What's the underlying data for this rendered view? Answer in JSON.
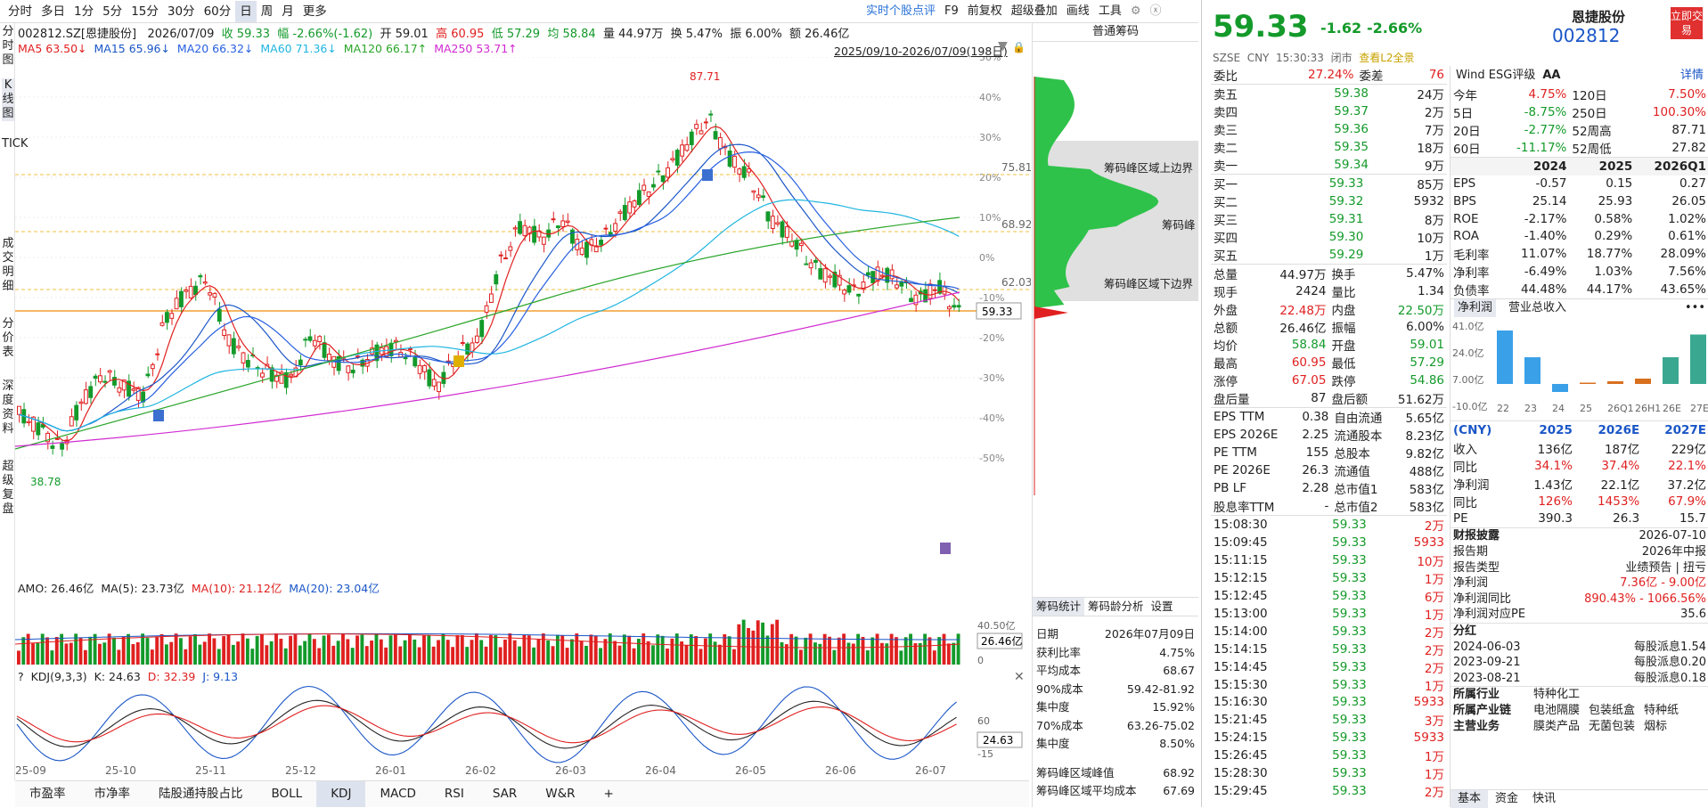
{
  "toolbar": {
    "periods": [
      "分时",
      "多日",
      "1分",
      "5分",
      "15分",
      "30分",
      "60分",
      "日",
      "周",
      "月",
      "更多"
    ],
    "active_period": "日",
    "tools": [
      "实时个股点评",
      "F9",
      "前复权",
      "超级叠加",
      "画线",
      "工具"
    ]
  },
  "info": {
    "code": "002812.SZ[恩捷股份]",
    "date": "2026/07/09",
    "close": "收 59.33",
    "change": "幅 -2.66%(-1.62)",
    "open": "开 59.01",
    "high": "高 60.95",
    "low": "低 57.29",
    "avg": "均 58.84",
    "vol": "量 44.97万",
    "turnover": "换 5.47%",
    "amp": "振 6.00%",
    "amt": "额 26.46亿"
  },
  "ma": {
    "ma5": "MA5 63.50↓",
    "ma15": "MA15 65.96↓",
    "ma20": "MA20 66.32↓",
    "ma60": "MA60 71.36↓",
    "ma120": "MA120 66.17↑",
    "ma250": "MA250 53.71↑",
    "range": "2025/09/10-2026/07/09(198日)"
  },
  "ma_colors": {
    "ma5": "#e02020",
    "ma15": "#1a56c7",
    "ma20": "#2860e0",
    "ma60": "#1fb5e0",
    "ma120": "#2aa52a",
    "ma250": "#d02ad0"
  },
  "sidebar": [
    "分时图",
    "K线图",
    "TICK",
    "成交明细",
    "分价表",
    "深度资料",
    "超级复盘"
  ],
  "price_chart": {
    "pct_ticks": [
      "50%",
      "40%",
      "30%",
      "20%",
      "10%",
      "0%",
      "-10%",
      "-20%",
      "-30%",
      "-40%",
      "-50%"
    ],
    "max_label": "87.71",
    "min_label": "38.78",
    "last_label": "59.33",
    "band_labels": [
      "75.81",
      "68.92",
      "62.03"
    ],
    "x_labels": [
      "25-09",
      "25-10",
      "25-11",
      "25-12",
      "26-01",
      "26-02",
      "26-03",
      "26-04",
      "26-05",
      "26-06",
      "26-07"
    ]
  },
  "chip": {
    "title": "普通筹码",
    "upper": "筹码峰区域上边界",
    "peak": "筹码峰",
    "lower": "筹码峰区域下边界"
  },
  "amo": {
    "label": "AMO: 26.46亿",
    "ma5": "MA(5): 23.73亿",
    "ma10": "MA(10): 21.12亿",
    "ma20": "MA(20): 23.04亿",
    "tick_top": "40.50亿",
    "tick_zero": "0",
    "value_box": "26.46亿"
  },
  "kdj": {
    "label": "KDJ(9,3,3)",
    "k": "K: 24.63",
    "d": "D: 32.39",
    "j": "J: 9.13",
    "tick_hi": "60",
    "tick_lo": "-15",
    "value_box": "24.63"
  },
  "chipstats": {
    "tabs": [
      "筹码统计",
      "筹码龄分析",
      "设置"
    ],
    "rows": [
      [
        "日期",
        "2026年07月09日"
      ],
      [
        "获利比率",
        "4.75%"
      ],
      [
        "平均成本",
        "68.67"
      ],
      [
        "90%成本",
        "59.42-81.92"
      ],
      [
        "集中度",
        "15.92%"
      ],
      [
        "70%成本",
        "63.26-75.02"
      ],
      [
        "集中度",
        "8.50%"
      ]
    ],
    "extra": [
      [
        "筹码峰区域峰值",
        "68.92"
      ],
      [
        "筹码峰区域平均成本",
        "67.69"
      ]
    ]
  },
  "bottom_tabs": [
    "市盈率",
    "市净率",
    "陆股通持股占比",
    "BOLL",
    "KDJ",
    "MACD",
    "RSI",
    "SAR",
    "W&R",
    "+"
  ],
  "bottom_active": "KDJ",
  "quote": {
    "price": "59.33",
    "change": "-1.62",
    "pct": "-2.66%",
    "name": "恩捷股份",
    "code": "002812",
    "trade_btn": "立即交易",
    "sub": [
      "SZSE",
      "CNY",
      "15:30:33",
      "闭市",
      "查看L2全景"
    ],
    "weibi": [
      "委比",
      "27.24%",
      "委差",
      "76"
    ],
    "sells": [
      [
        "卖五",
        "59.38",
        "24万"
      ],
      [
        "卖四",
        "59.37",
        "2万"
      ],
      [
        "卖三",
        "59.36",
        "7万"
      ],
      [
        "卖二",
        "59.35",
        "18万"
      ],
      [
        "卖一",
        "59.34",
        "9万"
      ]
    ],
    "buys": [
      [
        "买一",
        "59.33",
        "85万"
      ],
      [
        "买二",
        "59.32",
        "5932"
      ],
      [
        "买三",
        "59.31",
        "8万"
      ],
      [
        "买四",
        "59.30",
        "10万"
      ],
      [
        "买五",
        "59.29",
        "1万"
      ]
    ],
    "stats": [
      [
        "总量",
        "44.97万",
        "换手",
        "5.47%"
      ],
      [
        "现手",
        "2424",
        "量比",
        "1.34"
      ],
      [
        "外盘",
        "22.48万",
        "内盘",
        "22.50万"
      ],
      [
        "总额",
        "26.46亿",
        "振幅",
        "6.00%"
      ],
      [
        "均价",
        "58.84",
        "开盘",
        "59.01"
      ],
      [
        "最高",
        "60.95",
        "最低",
        "57.29"
      ],
      [
        "涨停",
        "67.05",
        "跌停",
        "54.86"
      ],
      [
        "盘后量",
        "87",
        "盘后额",
        "51.62万"
      ]
    ],
    "fin": [
      [
        "EPS TTM",
        "0.38",
        "自由流通",
        "5.65亿"
      ],
      [
        "EPS 2026E",
        "2.25",
        "流通股本",
        "8.23亿"
      ],
      [
        "PE TTM",
        "155",
        "总股本",
        "9.82亿"
      ],
      [
        "PE 2026E",
        "26.3",
        "流通值",
        "488亿"
      ],
      [
        "PB LF",
        "2.28",
        "总市值1",
        "583亿"
      ],
      [
        "股息率TTM",
        "-",
        "总市值2",
        "583亿"
      ]
    ],
    "ticks": [
      [
        "15:08:30",
        "59.33",
        "2万"
      ],
      [
        "15:09:45",
        "59.33",
        "5933"
      ],
      [
        "15:11:15",
        "59.33",
        "10万"
      ],
      [
        "15:12:15",
        "59.33",
        "1万"
      ],
      [
        "15:12:45",
        "59.33",
        "6万"
      ],
      [
        "15:13:00",
        "59.33",
        "1万"
      ],
      [
        "15:14:00",
        "59.33",
        "2万"
      ],
      [
        "15:14:15",
        "59.33",
        "2万"
      ],
      [
        "15:14:45",
        "59.33",
        "2万"
      ],
      [
        "15:15:30",
        "59.33",
        "1万"
      ],
      [
        "15:16:30",
        "59.33",
        "5933"
      ],
      [
        "15:21:45",
        "59.33",
        "3万"
      ],
      [
        "15:24:15",
        "59.33",
        "5933"
      ],
      [
        "15:26:45",
        "59.33",
        "1万"
      ],
      [
        "15:28:30",
        "59.33",
        "1万"
      ],
      [
        "15:29:45",
        "59.33",
        "2万"
      ]
    ]
  },
  "esg": {
    "label": "Wind ESG评级",
    "grade": "AA",
    "detail": "详情"
  },
  "perf": [
    [
      "今年",
      "4.75%",
      "120日",
      "7.50%"
    ],
    [
      "5日",
      "-8.75%",
      "250日",
      "100.30%"
    ],
    [
      "20日",
      "-2.77%",
      "52周高",
      "87.71"
    ],
    [
      "60日",
      "-11.17%",
      "52周低",
      "27.82"
    ]
  ],
  "fin_table": {
    "header": [
      "",
      "2024",
      "2025",
      "2026Q1"
    ],
    "rows": [
      [
        "EPS",
        "-0.57",
        "0.15",
        "0.27"
      ],
      [
        "BPS",
        "25.14",
        "25.93",
        "26.05"
      ],
      [
        "ROE",
        "-2.17%",
        "0.58%",
        "1.02%"
      ],
      [
        "ROA",
        "-1.40%",
        "0.29%",
        "0.61%"
      ],
      [
        "毛利率",
        "11.07%",
        "18.77%",
        "28.09%"
      ],
      [
        "净利率",
        "-6.49%",
        "1.03%",
        "7.56%"
      ],
      [
        "负债率",
        "44.48%",
        "44.17%",
        "43.65%"
      ]
    ]
  },
  "profit_tabs": [
    "净利润",
    "营业总收入"
  ],
  "profit_chart": {
    "yticks": [
      "41.0亿",
      "24.0亿",
      "7.00亿",
      "-10.0亿"
    ],
    "x": [
      "22",
      "23",
      "24",
      "25",
      "26Q1",
      "26H1",
      "26E",
      "27E"
    ],
    "values": [
      40,
      20,
      -6,
      1,
      2,
      4,
      20,
      37
    ]
  },
  "forecast": {
    "header": [
      "(CNY)",
      "2025",
      "2026E",
      "2027E"
    ],
    "rows": [
      [
        "收入",
        "136亿",
        "187亿",
        "229亿"
      ],
      [
        "同比",
        "34.1%",
        "37.4%",
        "22.1%"
      ],
      [
        "净利润",
        "1.43亿",
        "22.1亿",
        "37.2亿"
      ],
      [
        "同比",
        "126%",
        "1453%",
        "67.9%"
      ],
      [
        "PE",
        "390.3",
        "26.3",
        "15.7"
      ]
    ]
  },
  "disclosure": {
    "title": "财报披露",
    "date": "2026-07-10",
    "rows": [
      [
        "报告期",
        "2026年中报"
      ],
      [
        "报告类型",
        "业绩预告 | 扭亏"
      ],
      [
        "净利润",
        "7.36亿 - 9.00亿"
      ],
      [
        "净利润同比",
        "890.43% - 1066.56%"
      ],
      [
        "净利润对应PE",
        "35.6"
      ]
    ]
  },
  "dividend": {
    "title": "分红",
    "rows": [
      [
        "2024-06-03",
        "每股派息1.54"
      ],
      [
        "2023-09-21",
        "每股派息0.20"
      ],
      [
        "2023-08-21",
        "每股派息0.18"
      ]
    ]
  },
  "industry": [
    [
      "所属行业",
      "特种化工",
      ""
    ],
    [
      "所属产业链",
      "电池隔膜",
      "包装纸盒",
      "特种纸"
    ],
    [
      "主营业务",
      "膜类产品",
      "无菌包装",
      "烟标"
    ]
  ],
  "right_tabs": [
    "基本",
    "资金",
    "快讯"
  ]
}
